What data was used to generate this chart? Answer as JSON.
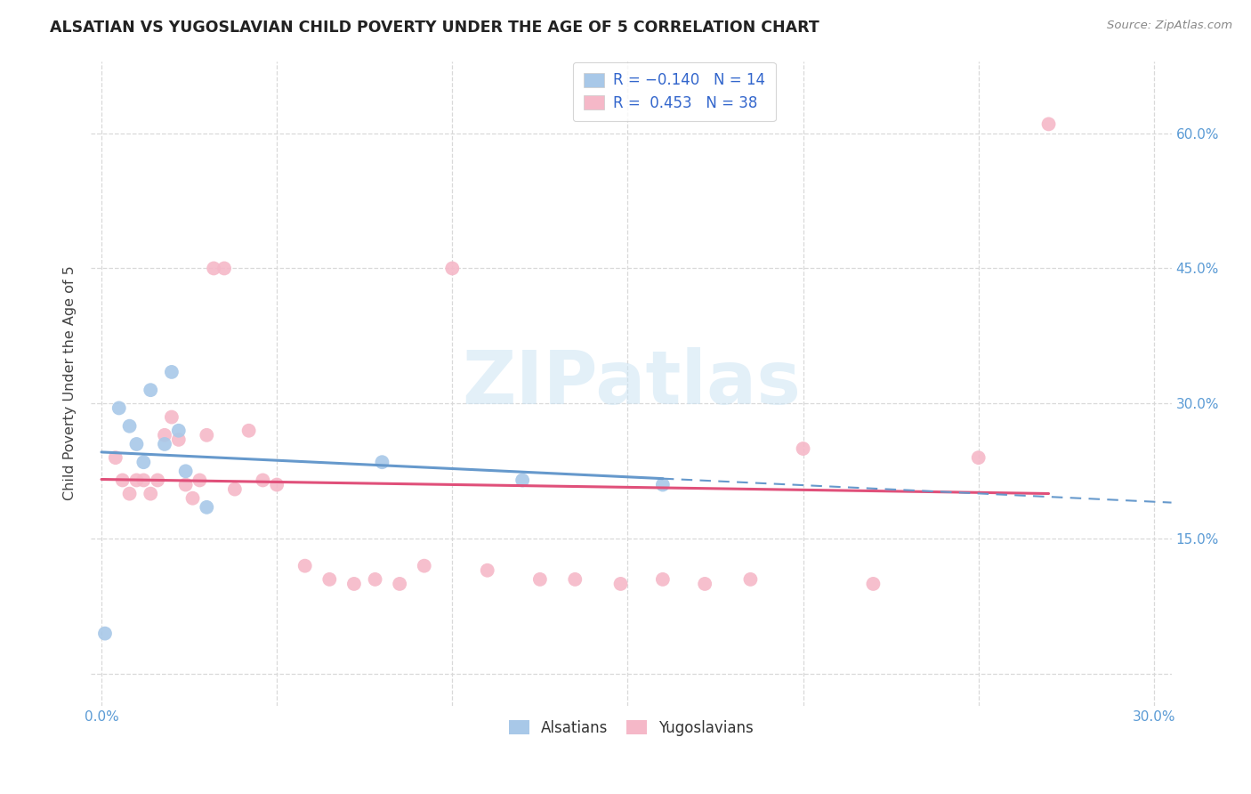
{
  "title": "ALSATIAN VS YUGOSLAVIAN CHILD POVERTY UNDER THE AGE OF 5 CORRELATION CHART",
  "source": "Source: ZipAtlas.com",
  "ylabel": "Child Poverty Under the Age of 5",
  "xlim": [
    -0.003,
    0.305
  ],
  "ylim": [
    -0.035,
    0.68
  ],
  "ytick_positions": [
    0.0,
    0.15,
    0.3,
    0.45,
    0.6
  ],
  "xtick_positions": [
    0.0,
    0.05,
    0.1,
    0.15,
    0.2,
    0.25,
    0.3
  ],
  "xtick_labels": [
    "0.0%",
    "",
    "",
    "",
    "",
    "",
    "30.0%"
  ],
  "ytick_labels_right": [
    "",
    "15.0%",
    "30.0%",
    "45.0%",
    "60.0%"
  ],
  "background_color": "#ffffff",
  "grid_color": "#d9d9d9",
  "watermark": "ZIPatlas",
  "alsatian_color": "#a8c8e8",
  "yugoslavian_color": "#f5b8c8",
  "alsatian_line_color": "#6699cc",
  "yugoslavian_line_color": "#e0507a",
  "legend_label_alsatian_bottom": "Alsatians",
  "legend_label_yugoslavian_bottom": "Yugoslavians",
  "alsatian_x": [
    0.005,
    0.008,
    0.01,
    0.012,
    0.014,
    0.018,
    0.02,
    0.024,
    0.001,
    0.08,
    0.12,
    0.16,
    0.022,
    0.03
  ],
  "alsatian_y": [
    0.295,
    0.275,
    0.255,
    0.235,
    0.315,
    0.255,
    0.335,
    0.225,
    0.045,
    0.235,
    0.215,
    0.21,
    0.27,
    0.185
  ],
  "yugoslavian_x": [
    0.004,
    0.006,
    0.008,
    0.01,
    0.012,
    0.014,
    0.016,
    0.018,
    0.02,
    0.022,
    0.024,
    0.026,
    0.028,
    0.03,
    0.032,
    0.035,
    0.038,
    0.042,
    0.046,
    0.05,
    0.058,
    0.065,
    0.072,
    0.078,
    0.085,
    0.092,
    0.1,
    0.11,
    0.125,
    0.135,
    0.148,
    0.16,
    0.172,
    0.185,
    0.2,
    0.22,
    0.25,
    0.27
  ],
  "yugoslavian_y": [
    0.24,
    0.215,
    0.2,
    0.215,
    0.215,
    0.2,
    0.215,
    0.265,
    0.285,
    0.26,
    0.21,
    0.195,
    0.215,
    0.265,
    0.45,
    0.45,
    0.205,
    0.27,
    0.215,
    0.21,
    0.12,
    0.105,
    0.1,
    0.105,
    0.1,
    0.12,
    0.45,
    0.115,
    0.105,
    0.105,
    0.1,
    0.105,
    0.1,
    0.105,
    0.25,
    0.1,
    0.24,
    0.61
  ]
}
